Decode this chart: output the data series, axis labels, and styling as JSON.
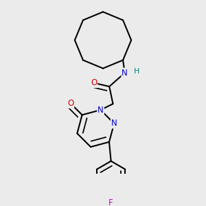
{
  "bg_color": "#ebebeb",
  "bond_color": "#000000",
  "bond_width": 1.5,
  "atom_colors": {
    "N": "#0000cc",
    "O": "#cc0000",
    "F": "#cc00cc",
    "H": "#008080",
    "C": "#000000"
  },
  "font_size_atom": 8.5,
  "font_size_H": 8
}
